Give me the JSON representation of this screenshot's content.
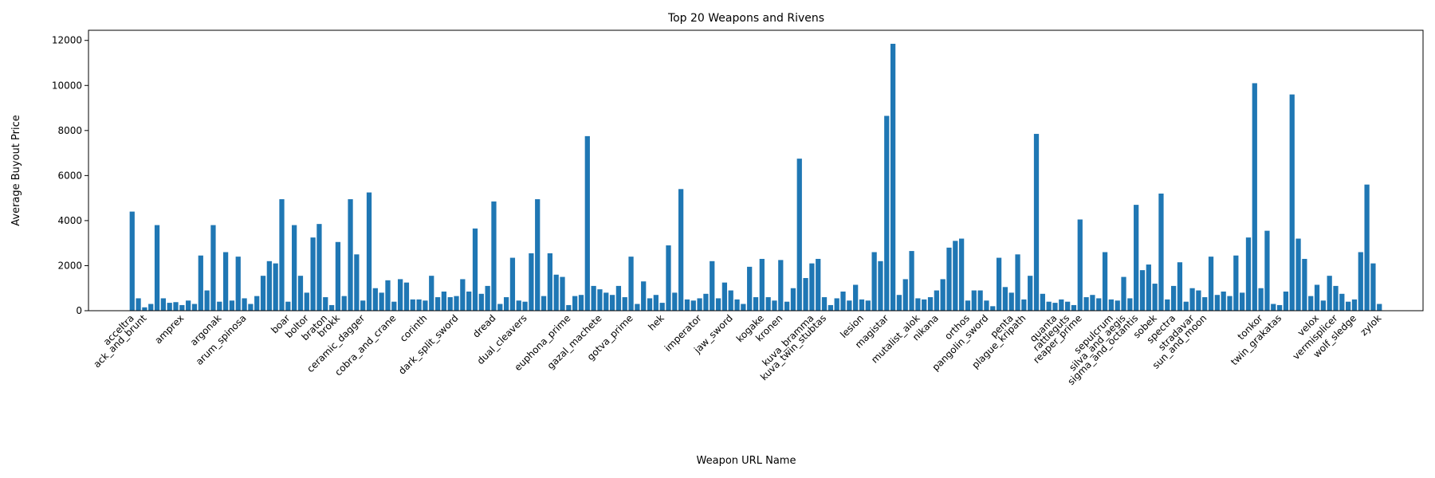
{
  "chart_data": {
    "type": "bar",
    "title": "Top 20 Weapons and Rivens",
    "x_label": "Weapon URL Name",
    "y_label": "Average Buyout Price",
    "color": "#1f77b4",
    "ylim": [
      0,
      12450
    ],
    "yticks": [
      0,
      2000,
      4000,
      6000,
      8000,
      10000,
      12000
    ],
    "grid": false,
    "categories": [
      "acceltra",
      null,
      "ack_and_brunt",
      null,
      null,
      null,
      null,
      null,
      "amprex",
      null,
      null,
      null,
      null,
      null,
      "argonak",
      null,
      null,
      null,
      "arum_spinosa",
      null,
      null,
      null,
      null,
      null,
      null,
      "boar",
      null,
      null,
      "boltor",
      null,
      null,
      "braton",
      null,
      "brokk",
      null,
      null,
      null,
      "ceramic_dagger",
      null,
      null,
      null,
      null,
      "cobra_and_crane",
      null,
      null,
      null,
      null,
      "corinth",
      null,
      null,
      null,
      null,
      "dark_split_sword",
      null,
      null,
      null,
      null,
      null,
      "dread",
      null,
      null,
      null,
      null,
      "dual_cleavers",
      null,
      null,
      null,
      null,
      null,
      null,
      "euphona_prime",
      null,
      null,
      null,
      null,
      "gazal_machete",
      null,
      null,
      null,
      null,
      "gotva_prime",
      null,
      null,
      null,
      null,
      "hek",
      null,
      null,
      null,
      null,
      null,
      "imperator",
      null,
      null,
      null,
      null,
      "jaw_sword",
      null,
      null,
      null,
      null,
      "kogake",
      null,
      null,
      "kronen",
      null,
      null,
      null,
      null,
      "kuva_bramma",
      null,
      "kuva_twin_stubtas",
      null,
      null,
      null,
      null,
      null,
      "lesion",
      null,
      null,
      null,
      "magistar",
      null,
      null,
      null,
      null,
      "mutalist_alok",
      null,
      null,
      "nikana",
      null,
      null,
      null,
      null,
      "orthos",
      null,
      null,
      "pangolin_sword",
      null,
      null,
      null,
      "penta",
      null,
      "plague_kripath",
      null,
      null,
      null,
      null,
      "quanta",
      null,
      "rattleguts",
      null,
      "reaper_prime",
      null,
      null,
      null,
      null,
      "sepulcrum",
      null,
      "silva_and_aegis",
      null,
      "sigma_and_octantis",
      null,
      null,
      "sobek",
      null,
      null,
      "spectra",
      null,
      null,
      "stradavar",
      null,
      "sun_and_moon",
      null,
      null,
      null,
      null,
      null,
      null,
      null,
      null,
      "tonkor",
      null,
      null,
      "twin_grakatas",
      null,
      null,
      null,
      null,
      null,
      "velox",
      null,
      null,
      "vermisplicer",
      null,
      null,
      "wolf_sledge",
      null,
      null,
      null,
      "zylok"
    ],
    "values": [
      4400,
      550,
      150,
      300,
      3800,
      550,
      350,
      380,
      250,
      450,
      300,
      2450,
      900,
      3800,
      400,
      2600,
      450,
      2400,
      550,
      300,
      650,
      1550,
      2200,
      2100,
      4950,
      400,
      3800,
      1550,
      800,
      3250,
      3850,
      600,
      250,
      3050,
      650,
      4950,
      2500,
      450,
      5250,
      1000,
      800,
      1350,
      400,
      1400,
      1250,
      500,
      500,
      450,
      1550,
      600,
      850,
      600,
      650,
      1400,
      850,
      3650,
      750,
      1100,
      4850,
      300,
      600,
      2350,
      450,
      400,
      2550,
      4950,
      650,
      2550,
      1600,
      1500,
      250,
      650,
      700,
      7750,
      1100,
      950,
      800,
      700,
      1100,
      600,
      2400,
      300,
      1300,
      550,
      700,
      350,
      2900,
      800,
      5400,
      500,
      450,
      550,
      750,
      2200,
      550,
      1250,
      900,
      500,
      300,
      1950,
      600,
      2300,
      600,
      450,
      2250,
      400,
      1000,
      6750,
      1450,
      2100,
      2300,
      600,
      250,
      550,
      850,
      450,
      1150,
      500,
      450,
      2600,
      2200,
      8650,
      11850,
      700,
      1400,
      2650,
      550,
      500,
      600,
      900,
      1400,
      2800,
      3100,
      3200,
      450,
      900,
      900,
      450,
      200,
      2350,
      1050,
      800,
      2500,
      500,
      1550,
      7850,
      750,
      400,
      350,
      500,
      400,
      250,
      4050,
      600,
      700,
      550,
      2600,
      500,
      450,
      1500,
      550,
      4700,
      1800,
      2050,
      1200,
      5200,
      500,
      1100,
      2150,
      400,
      1000,
      900,
      600,
      2400,
      700,
      850,
      650,
      2450,
      800,
      3250,
      10100,
      1000,
      3550,
      300,
      250,
      850,
      9600,
      3200,
      2300,
      650,
      1150,
      450,
      1550,
      1100,
      750,
      400,
      500,
      2600,
      5600,
      2100,
      300
    ]
  }
}
